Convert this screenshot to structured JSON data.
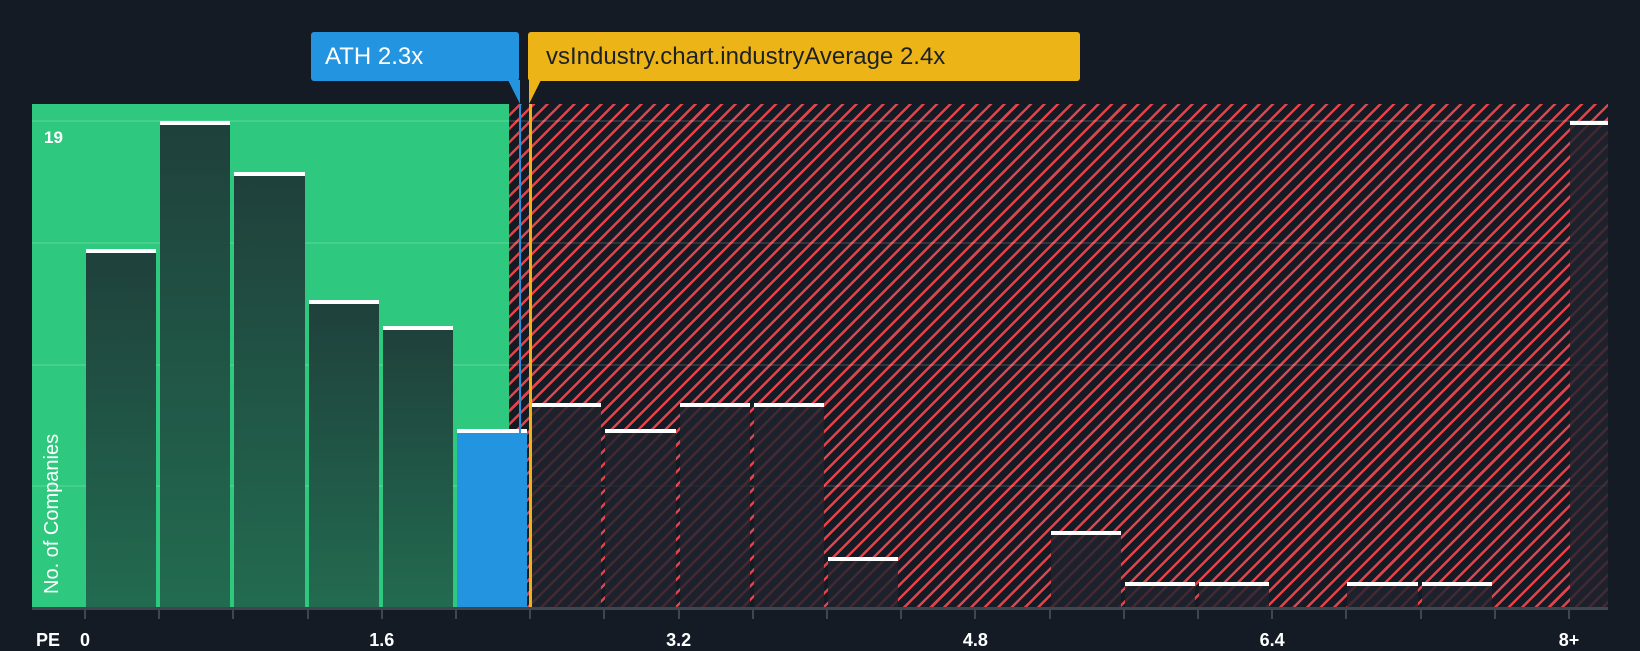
{
  "callouts": {
    "company": {
      "label": "ATH 2.3x",
      "color": "#2394e0"
    },
    "industry": {
      "label": "vsIndustry.chart.industryAverage 2.4x",
      "color": "#edb418"
    }
  },
  "axis": {
    "y_title": "No. of Companies",
    "y_max_label": "19",
    "x_title": "PE",
    "x_ticks": [
      "0",
      "1.6",
      "3.2",
      "4.8",
      "6.4",
      "8+"
    ]
  },
  "colors": {
    "background": "#151b24",
    "undervalued_zone": "#2ec97f",
    "overvalued_stripe": "#e0434a",
    "company_bar": "#2394e0",
    "industry_line": "#edb418"
  },
  "chart_data": {
    "type": "bar",
    "title": "",
    "xlabel": "PE",
    "ylabel": "No. of Companies",
    "categories": [
      "0-0.4",
      "0.4-0.8",
      "0.8-1.2",
      "1.2-1.6",
      "1.6-2.0",
      "2.0-2.4",
      "2.4-2.8",
      "2.8-3.2",
      "3.2-3.6",
      "3.6-4.0",
      "4.0-4.4",
      "4.4-4.8",
      "4.8-5.2",
      "5.2-5.6",
      "5.6-6.0",
      "6.0-6.4",
      "6.4-6.8",
      "6.8-7.2",
      "7.2-7.6",
      "7.6-8.0",
      "8+"
    ],
    "values": [
      14,
      19,
      17,
      12,
      11,
      7,
      8,
      7,
      8,
      8,
      2,
      0,
      0,
      3,
      1,
      1,
      0,
      1,
      1,
      0,
      19
    ],
    "highlight_bin": "2.0-2.4",
    "company_value": 2.3,
    "company_label": "ATH 2.3x",
    "industry_average": 2.4,
    "industry_label": "vsIndustry.chart.industryAverage 2.4x",
    "ylim": [
      0,
      19
    ],
    "x_tick_labels": [
      "0",
      "1.6",
      "3.2",
      "4.8",
      "6.4",
      "8+"
    ],
    "grid": true
  }
}
